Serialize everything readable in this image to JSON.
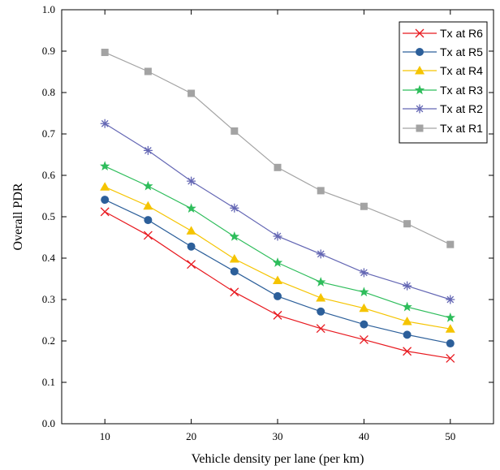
{
  "chart_data": {
    "type": "line",
    "title": "",
    "xlabel": "Vehicle density per lane (per km)",
    "ylabel": "Overall PDR",
    "xlim": [
      5,
      55
    ],
    "ylim": [
      0.0,
      1.0
    ],
    "x_ticks": [
      "10",
      "20",
      "30",
      "40",
      "50"
    ],
    "y_ticks": [
      "0.0",
      "0.1",
      "0.2",
      "0.3",
      "0.4",
      "0.5",
      "0.6",
      "0.7",
      "0.8",
      "0.9",
      "1.0"
    ],
    "grid": false,
    "legend_position": "top-right",
    "x": [
      10,
      15,
      20,
      25,
      30,
      35,
      40,
      45,
      50
    ],
    "series": [
      {
        "name": "Tx at R6",
        "color": "#e8191f",
        "marker": "x",
        "values": [
          0.512,
          0.455,
          0.385,
          0.318,
          0.262,
          0.23,
          0.203,
          0.175,
          0.158
        ]
      },
      {
        "name": "Tx at R5",
        "color": "#2c5f9a",
        "marker": "circle",
        "values": [
          0.541,
          0.492,
          0.428,
          0.368,
          0.308,
          0.271,
          0.24,
          0.215,
          0.194
        ]
      },
      {
        "name": "Tx at R4",
        "color": "#f5c400",
        "marker": "triangle",
        "values": [
          0.572,
          0.526,
          0.466,
          0.398,
          0.346,
          0.304,
          0.279,
          0.247,
          0.229
        ]
      },
      {
        "name": "Tx at R3",
        "color": "#2ebd5b",
        "marker": "star",
        "values": [
          0.622,
          0.574,
          0.52,
          0.452,
          0.389,
          0.342,
          0.318,
          0.282,
          0.256
        ]
      },
      {
        "name": "Tx at R2",
        "color": "#6467b4",
        "marker": "asterisk",
        "values": [
          0.725,
          0.66,
          0.586,
          0.521,
          0.453,
          0.41,
          0.365,
          0.333,
          0.3
        ]
      },
      {
        "name": "Tx at R1",
        "color": "#a3a3a3",
        "marker": "square",
        "values": [
          0.897,
          0.851,
          0.798,
          0.707,
          0.619,
          0.563,
          0.525,
          0.483,
          0.433
        ]
      }
    ]
  }
}
